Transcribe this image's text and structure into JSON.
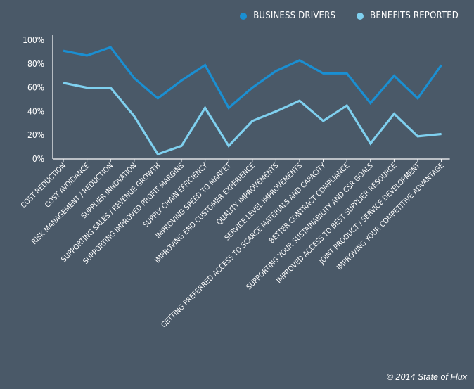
{
  "legend": [
    {
      "label": "BUSINESS DRIVERS",
      "color": "#1a8fd2"
    },
    {
      "label": "BENEFITS REPORTED",
      "color": "#7fd0ef"
    }
  ],
  "copyright": "© 2014 State of Flux",
  "chart_data": {
    "type": "line",
    "title": "",
    "xlabel": "",
    "ylabel": "",
    "ylim": [
      0,
      100
    ],
    "yticks": [
      "0%",
      "20%",
      "40%",
      "60%",
      "80%",
      "100%"
    ],
    "legend_position": "top-right",
    "grid": false,
    "categories": [
      "COST REDUCTION",
      "COST AVOIDANCE",
      "RISK MANAGEMENT / REDUCTION",
      "SUPPLIER INNOVATION",
      "SUPPORTING SALES / REVENUE GROWTH",
      "SUPPORTING IMPROVED PROFIT MARGINS",
      "SUPPLY CHAIN EFFICIENCY",
      "IMPROVING SPEED TO MARKET",
      "IMPROVING END CUSTOMER EXPERIENCE",
      "QUALITY IMPROVEMENTS",
      "SERVICE LEVEL IMPROVEMENTS",
      "GETTING PREFERRED ACCESS TO SCARCE MATERIALS AND CAPACITY",
      "BETTER CONTRACT COMPLIANCE",
      "SUPPORTING YOUR SUSTAINABILITY AND CSR GOALS",
      "IMPROVED ACCESS TO BEST SUPPLIER RESOURCE",
      "JOINT PRODUCT / SERVICE DEVELOPMENT",
      "IMPROVING YOUR COMPETITIVE ADVANTAGE"
    ],
    "series": [
      {
        "name": "BUSINESS DRIVERS",
        "color": "#1a8fd2",
        "values": [
          91,
          87,
          94,
          68,
          51,
          66,
          79,
          43,
          60,
          74,
          83,
          72,
          72,
          47,
          70,
          51,
          79
        ]
      },
      {
        "name": "BENEFITS REPORTED",
        "color": "#7fd0ef",
        "values": [
          64,
          60,
          60,
          36,
          4,
          11,
          43,
          11,
          32,
          40,
          49,
          32,
          45,
          13,
          38,
          19,
          21
        ]
      }
    ]
  }
}
